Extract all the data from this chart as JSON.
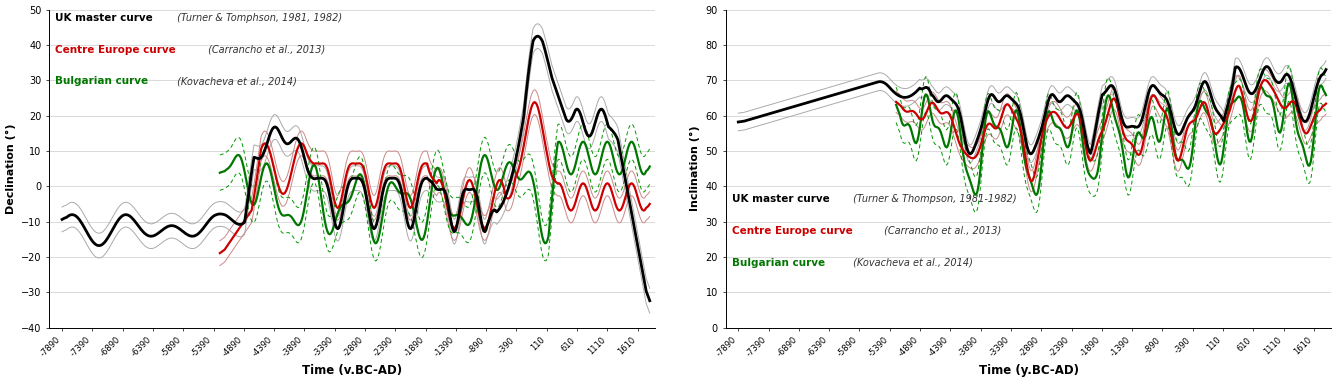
{
  "xlabel_left": "Time (v.BC-AD)",
  "xlabel_right": "Time (y.BC-AD)",
  "ylabel_left": "Declination (°)",
  "ylabel_right": "Inclination (°)",
  "x_ticks": [
    -7890,
    -7390,
    -6890,
    -6390,
    -5890,
    -5390,
    -4890,
    -4390,
    -3890,
    -3390,
    -2890,
    -2390,
    -1890,
    -1390,
    -890,
    -390,
    110,
    610,
    1110,
    1610
  ],
  "x_tick_labels": [
    "-7890",
    "-7390",
    "-6890",
    "-6390",
    "-5890",
    "-5390",
    "-4890",
    "-4390",
    "-3890",
    "-3390",
    "-2890",
    "-2390",
    "-1890",
    "-1390",
    "-890",
    "-390",
    "110",
    "610",
    "1110",
    "1610"
  ],
  "ylim_left": [
    -40,
    50
  ],
  "ylim_right": [
    0,
    90
  ],
  "yticks_left": [
    -40,
    -30,
    -20,
    -10,
    0,
    10,
    20,
    30,
    40,
    50
  ],
  "yticks_right": [
    0,
    10,
    20,
    30,
    40,
    50,
    60,
    70,
    80,
    90
  ],
  "xlim": [
    -8100,
    1900
  ],
  "bg_color": "#ffffff",
  "uk_color": "#000000",
  "ce_color": "#cc0000",
  "bg_curve_color": "#007700",
  "uk_conf_color": "#aaaaaa",
  "ce_conf_color": "#cc8888",
  "bg_conf_color": "#009900",
  "legend_left_entries": [
    {
      "bold": "UK master curve",
      "italic": " (Turner & Tomphson, 1981, 1982)",
      "color": "#000000"
    },
    {
      "bold": "Centre Europe curve",
      "italic": " (Carrancho et al., 2013)",
      "color": "#cc0000"
    },
    {
      "bold": "Bulgarian curve",
      "italic": " (Kovacheva et al., 2014)",
      "color": "#007700"
    }
  ],
  "legend_right_entries": [
    {
      "bold": "UK master curve",
      "italic": " (Turner & Thompson, 1981-1982)",
      "color": "#000000"
    },
    {
      "bold": "Centre Europe curve",
      "italic": " (Carrancho et al., 2013)",
      "color": "#cc0000"
    },
    {
      "bold": "Bulgarian curve",
      "italic": " (Kovacheva et al., 2014)",
      "color": "#007700"
    }
  ]
}
